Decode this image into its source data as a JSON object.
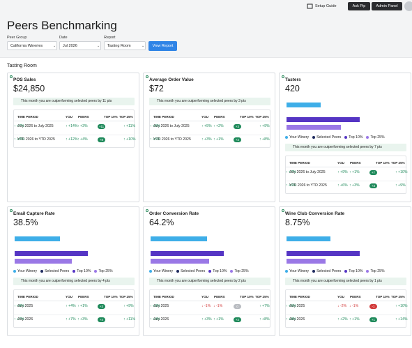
{
  "topbar": {
    "setup_guide": "Setup Guide",
    "ask_pip": "Ask Pip",
    "admin_panel": "Admin Panel"
  },
  "header": {
    "title": "Peers Benchmarking",
    "filters": [
      {
        "label": "Peer Group",
        "value": "California Wineries"
      },
      {
        "label": "Date",
        "value": "Jul 2026"
      },
      {
        "label": "Report",
        "value": "Tasting Room"
      }
    ],
    "button": "View Report"
  },
  "section": "Tasting Room",
  "cards": [
    {
      "title": "POS Sales",
      "value": "$24,850",
      "banner": "This month you are outperforming selected peers by 11 pts",
      "columns": [
        "TIME PERIOD",
        "YOU",
        "PEERS",
        "TOP 10%",
        "TOP 25%"
      ],
      "rows": [
        {
          "period": "July 2026 to July 2025",
          "you": "↑ +14%",
          "peers": "↑ +3%",
          "diff": "+11",
          "top10": "↑ +11%",
          "top25": "↑ +7%"
        },
        {
          "period": "YTD 2026 to YTD 2025",
          "you": "↑ +12%",
          "peers": "↑ +4%",
          "diff": "+8",
          "top10": "↑ +10%",
          "top25": "↑ +8%"
        }
      ]
    },
    {
      "title": "Average Order Value",
      "value": "$72",
      "banner": "This month you are outperforming selected peers by 3 pts",
      "columns": [
        "TIME PERIOD",
        "YOU",
        "PEERS",
        "TOP 10%",
        "TOP 25%"
      ],
      "rows": [
        {
          "period": "July 2026 to July 2025",
          "you": "↑ +5%",
          "peers": "↑ +2%",
          "diff": "+3",
          "top10": "↑ +9%",
          "top25": "↑ +6%"
        },
        {
          "period": "YTD 2026 to YTD 2025",
          "you": "↑ +3%",
          "peers": "↑ +1%",
          "diff": "+2",
          "top10": "↑ +8%",
          "top25": "↑ +5%"
        }
      ]
    },
    {
      "title": "Tasters",
      "value": "420",
      "chart": {
        "type": "bar",
        "series": [
          {
            "name": "Your Winery",
            "color": "#3eaee8",
            "value": 420
          },
          {
            "name": "Selected Peers",
            "color": "#1e2a5e",
            "value": null
          },
          {
            "name": "Top 10%",
            "color": "#5535c4",
            "value": 896
          },
          {
            "name": "Top 25%",
            "color": "#9a78e6",
            "value": 662
          }
        ]
      },
      "banner": "This month you are outperforming selected peers by 7 pts",
      "columns": [
        "TIME PERIOD",
        "YOU",
        "PEERS",
        "TOP 10%",
        "TOP 25%"
      ],
      "rows": [
        {
          "period": "July 2026 to July 2025",
          "you": "↑ +9%",
          "peers": "↑ +1%",
          "diff": "+7",
          "top10": "↑ +10%",
          "top25": "↑ +7%"
        },
        {
          "period": "YTD 2026 to YTD 2025",
          "you": "↑ +6%",
          "peers": "↑ +3%",
          "diff": "+3",
          "top10": "↑ +9%",
          "top25": "↑ +6%"
        }
      ]
    },
    {
      "title": "Email Capture Rate",
      "value": "38.5%",
      "chart": {
        "type": "bar",
        "series": [
          {
            "name": "Your Winery",
            "color": "#3eaee8",
            "value": 38.5
          },
          {
            "name": "Selected Peers",
            "color": "#1e2a5e",
            "value": null
          },
          {
            "name": "Top 10%",
            "color": "#5535c4",
            "value": 62.5
          },
          {
            "name": "Top 25%",
            "color": "#9a78e6",
            "value": 48.6
          }
        ]
      },
      "banner": "This month you are outperforming selected peers by 4 pts",
      "columns": [
        "TIME PERIOD",
        "YOU",
        "PEERS",
        "TOP 10%",
        "TOP 25%"
      ],
      "rows": [
        {
          "period": "July 2025",
          "you": "↑ +4%",
          "peers": "↑ +1%",
          "diff": "+3",
          "top10": "↑ +9%",
          "top25": "↑ +8%"
        },
        {
          "period": "July 2026",
          "you": "↑ +7%",
          "peers": "↑ +3%",
          "diff": "+4",
          "top10": "↑ +11%",
          "top25": "↑ +7%"
        }
      ]
    },
    {
      "title": "Order Conversion Rate",
      "value": "64.2%",
      "chart": {
        "type": "bar",
        "series": [
          {
            "name": "Your Winery",
            "color": "#3eaee8",
            "value": 64.2
          },
          {
            "name": "Selected Peers",
            "color": "#1e2a5e",
            "value": null
          },
          {
            "name": "Top 10%",
            "color": "#5535c4",
            "value": 83.1
          },
          {
            "name": "Top 25%",
            "color": "#9a78e6",
            "value": 66.7
          }
        ]
      },
      "banner": "This month you are outperforming selected peers by 2 pts",
      "columns": [
        "TIME PERIOD",
        "YOU",
        "PEERS",
        "TOP 10%",
        "TOP 25%"
      ],
      "rows": [
        {
          "period": "July 2025",
          "you": "↓ -1%",
          "peers": "↓ -1%",
          "diff": "0",
          "top10": "↑ +7%",
          "top25": "↑ +3%"
        },
        {
          "period": "July 2026",
          "you": "↑ +3%",
          "peers": "↑ +1%",
          "diff": "+2",
          "top10": "↑ +8%",
          "top25": "↑ +4%"
        }
      ]
    },
    {
      "title": "Wine Club Conversion Rate",
      "value": "8.75%",
      "chart": {
        "type": "bar",
        "series": [
          {
            "name": "Your Winery",
            "color": "#3eaee8",
            "value": 8.75
          },
          {
            "name": "Selected Peers",
            "color": "#1e2a5e",
            "value": null
          },
          {
            "name": "Top 10%",
            "color": "#5535c4",
            "value": 14.6
          },
          {
            "name": "Top 25%",
            "color": "#9a78e6",
            "value": 7.8
          }
        ]
      },
      "banner": "This month you are outperforming selected peers by 1 pts",
      "columns": [
        "TIME PERIOD",
        "YOU",
        "PEERS",
        "TOP 10%",
        "TOP 25%"
      ],
      "rows": [
        {
          "period": "July 2025",
          "you": "↓ -2%",
          "peers": "↓ -1%",
          "diff": "-1",
          "top10": "↑ +10%",
          "top25": "↑ +6%"
        },
        {
          "period": "July 2026",
          "you": "↑ +2%",
          "peers": "↑ +1%",
          "diff": "+1",
          "top10": "↑ +14%",
          "top25": "↑ +8%"
        }
      ]
    }
  ]
}
